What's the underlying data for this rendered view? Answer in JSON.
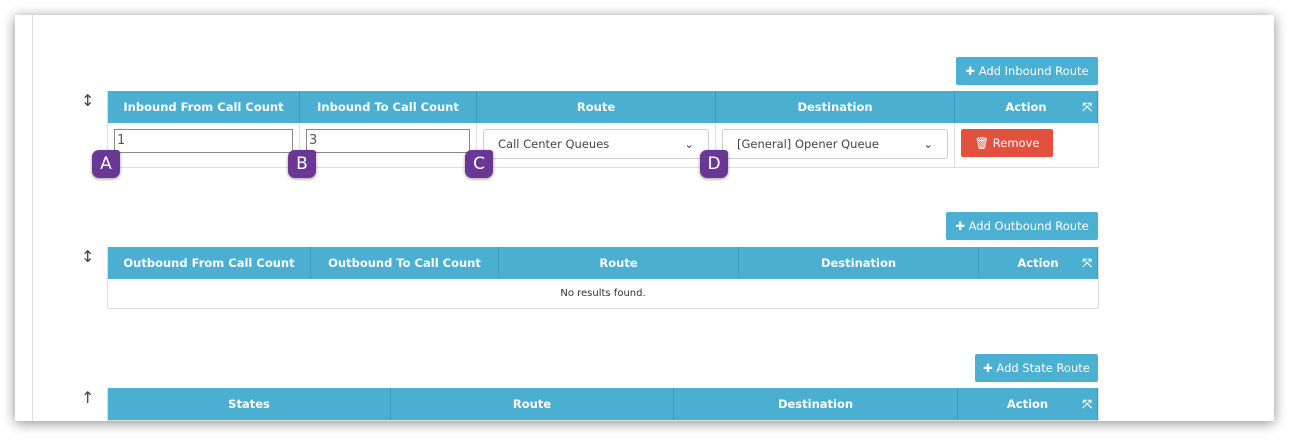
{
  "inbound": {
    "add_label": "✚ Add Inbound Route",
    "headers": [
      "Inbound From Call Count",
      "Inbound To Call Count",
      "Route",
      "Destination",
      "Action"
    ],
    "row": {
      "from": "1",
      "to": "3",
      "route": "Call Center Queues",
      "destination": "[General] Opener Queue",
      "remove_label": "🗑 Remove"
    }
  },
  "outbound": {
    "add_label": "✚ Add Outbound Route",
    "headers": [
      "Outbound From Call Count",
      "Outbound To Call Count",
      "Route",
      "Destination",
      "Action"
    ],
    "empty": "No results found."
  },
  "state": {
    "add_label": "✚ Add State Route",
    "headers": [
      "States",
      "Route",
      "Destination",
      "Action"
    ]
  },
  "badges": [
    "A",
    "B",
    "C",
    "D"
  ],
  "colors": {
    "header": "#4bafd1",
    "remove": "#e2503f",
    "badge": "#6b3795"
  }
}
